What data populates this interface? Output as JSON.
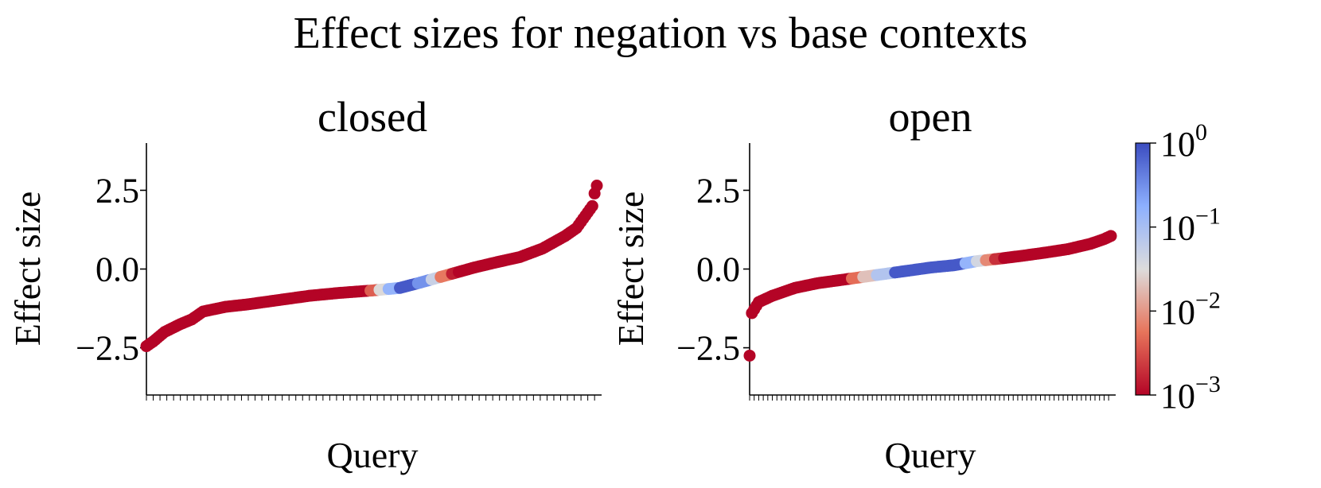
{
  "figure": {
    "title": "Effect sizes for negation vs base contexts"
  },
  "colorbar": {
    "scale": "log",
    "range": [
      0.001,
      1
    ],
    "colormap": "coolwarm",
    "ticks": [
      {
        "base": "10",
        "exp": "0"
      },
      {
        "base": "10",
        "exp": "−1"
      },
      {
        "base": "10",
        "exp": "−2"
      },
      {
        "base": "10",
        "exp": "−3"
      }
    ]
  },
  "chart_data": [
    {
      "type": "scatter",
      "title": "closed",
      "xlabel": "Query",
      "ylabel": "Effect size",
      "ylim": [
        -4.0,
        4.0
      ],
      "yticks": [
        -2.5,
        0.0,
        2.5
      ],
      "ytick_labels": [
        "−2.5",
        "0.0",
        "2.5"
      ],
      "x_ticks_without_labels": true,
      "points_sorted_ascending": true,
      "n_points": 200,
      "color_encodes": "p-value (log scale, coolwarm)",
      "effect_size_profile": [
        [
          0,
          -2.45
        ],
        [
          3,
          -2.3
        ],
        [
          8,
          -2.0
        ],
        [
          15,
          -1.75
        ],
        [
          20,
          -1.6
        ],
        [
          25,
          -1.35
        ],
        [
          35,
          -1.2
        ],
        [
          45,
          -1.12
        ],
        [
          60,
          -0.97
        ],
        [
          72,
          -0.85
        ],
        [
          85,
          -0.76
        ],
        [
          100,
          -0.68
        ],
        [
          112,
          -0.6
        ],
        [
          120,
          -0.45
        ],
        [
          125,
          -0.35
        ],
        [
          135,
          -0.15
        ],
        [
          145,
          0.05
        ],
        [
          155,
          0.22
        ],
        [
          165,
          0.38
        ],
        [
          175,
          0.65
        ],
        [
          185,
          1.05
        ],
        [
          190,
          1.3
        ],
        [
          194,
          1.7
        ],
        [
          197,
          2.0
        ],
        [
          198,
          2.4
        ],
        [
          199,
          2.65
        ],
        [
          200,
          3.2
        ]
      ],
      "color_bands": [
        {
          "from": 0,
          "to": 99,
          "p": 0.001
        },
        {
          "from": 99,
          "to": 103,
          "p": 0.004
        },
        {
          "from": 103,
          "to": 107,
          "p": 0.03
        },
        {
          "from": 107,
          "to": 112,
          "p": 0.15
        },
        {
          "from": 112,
          "to": 120,
          "p": 0.8
        },
        {
          "from": 120,
          "to": 126,
          "p": 0.3
        },
        {
          "from": 126,
          "to": 130,
          "p": 0.05
        },
        {
          "from": 130,
          "to": 135,
          "p": 0.006
        },
        {
          "from": 135,
          "to": 138,
          "p": 0.0015
        },
        {
          "from": 138,
          "to": 201,
          "p": 0.001
        }
      ]
    },
    {
      "type": "scatter",
      "title": "open",
      "xlabel": "Query",
      "ylabel": "Effect size",
      "ylim": [
        -4.0,
        4.0
      ],
      "yticks": [
        -2.5,
        0.0,
        2.5
      ],
      "ytick_labels": [
        "−2.5",
        "0.0",
        "2.5"
      ],
      "x_ticks_without_labels": true,
      "points_sorted_ascending": true,
      "n_points": 160,
      "color_encodes": "p-value (log scale, coolwarm)",
      "effect_size_profile": [
        [
          0,
          -2.75
        ],
        [
          1,
          -1.4
        ],
        [
          4,
          -1.05
        ],
        [
          10,
          -0.85
        ],
        [
          20,
          -0.6
        ],
        [
          30,
          -0.45
        ],
        [
          40,
          -0.35
        ],
        [
          50,
          -0.25
        ],
        [
          60,
          -0.15
        ],
        [
          70,
          -0.05
        ],
        [
          80,
          0.05
        ],
        [
          90,
          0.12
        ],
        [
          100,
          0.25
        ],
        [
          110,
          0.33
        ],
        [
          120,
          0.42
        ],
        [
          130,
          0.52
        ],
        [
          140,
          0.63
        ],
        [
          150,
          0.8
        ],
        [
          156,
          0.95
        ],
        [
          159,
          1.05
        ],
        [
          160,
          1.1
        ]
      ],
      "color_bands": [
        {
          "from": 0,
          "to": 45,
          "p": 0.001
        },
        {
          "from": 45,
          "to": 50,
          "p": 0.005
        },
        {
          "from": 50,
          "to": 56,
          "p": 0.02
        },
        {
          "from": 56,
          "to": 64,
          "p": 0.08
        },
        {
          "from": 64,
          "to": 95,
          "p": 0.8
        },
        {
          "from": 95,
          "to": 100,
          "p": 0.15
        },
        {
          "from": 100,
          "to": 104,
          "p": 0.04
        },
        {
          "from": 104,
          "to": 108,
          "p": 0.008
        },
        {
          "from": 108,
          "to": 112,
          "p": 0.002
        },
        {
          "from": 112,
          "to": 161,
          "p": 0.001
        }
      ]
    }
  ]
}
